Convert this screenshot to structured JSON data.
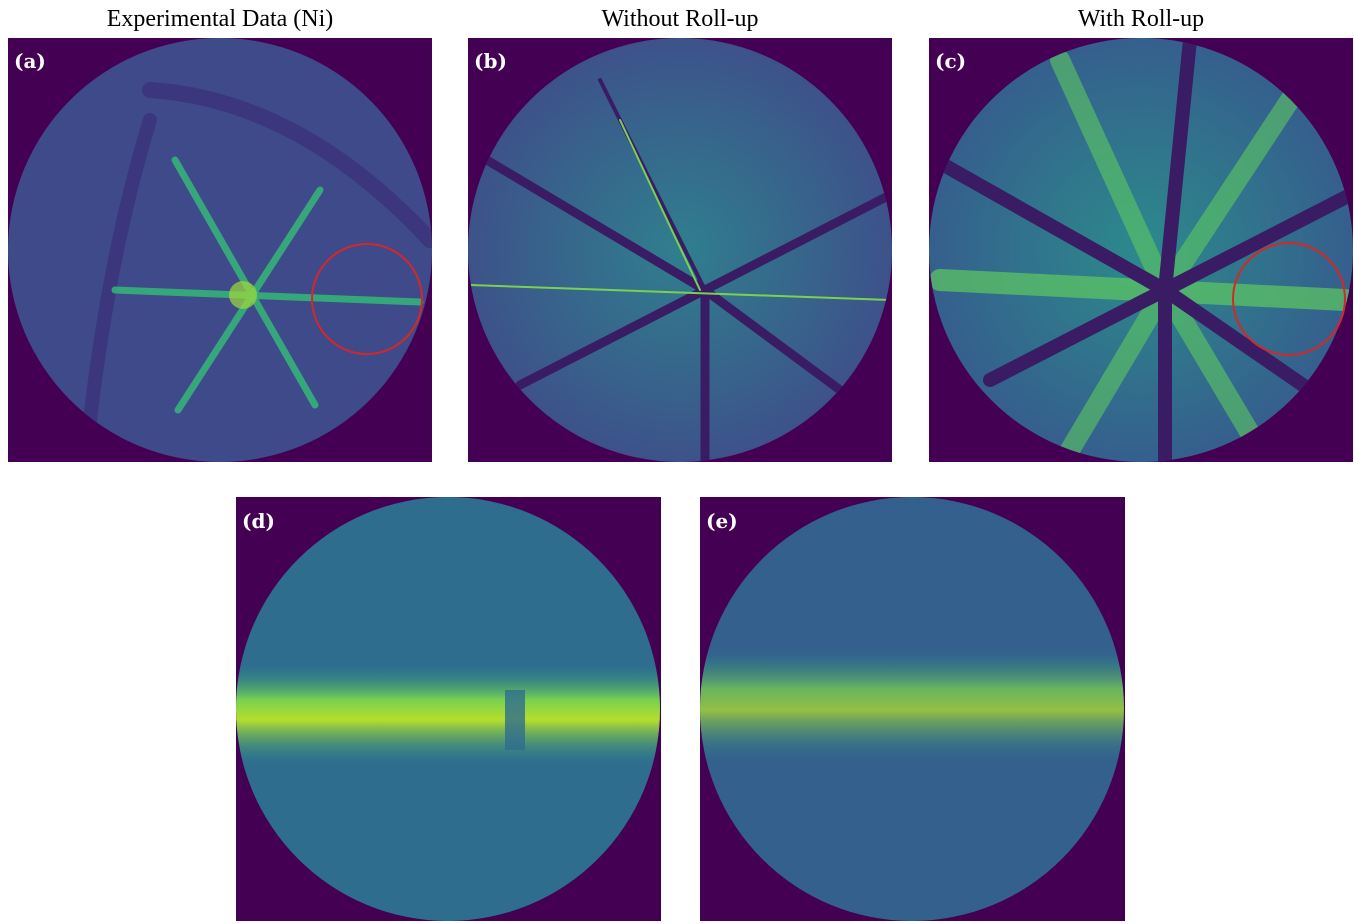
{
  "panels": [
    {
      "title": "Experimental Data (Ni)",
      "label": "(a)"
    },
    {
      "title": "Without Roll-up",
      "label": "(b)"
    },
    {
      "title": "With Roll-up",
      "label": "(c)"
    },
    {
      "label": "(d)"
    },
    {
      "label": "(e)"
    }
  ]
}
